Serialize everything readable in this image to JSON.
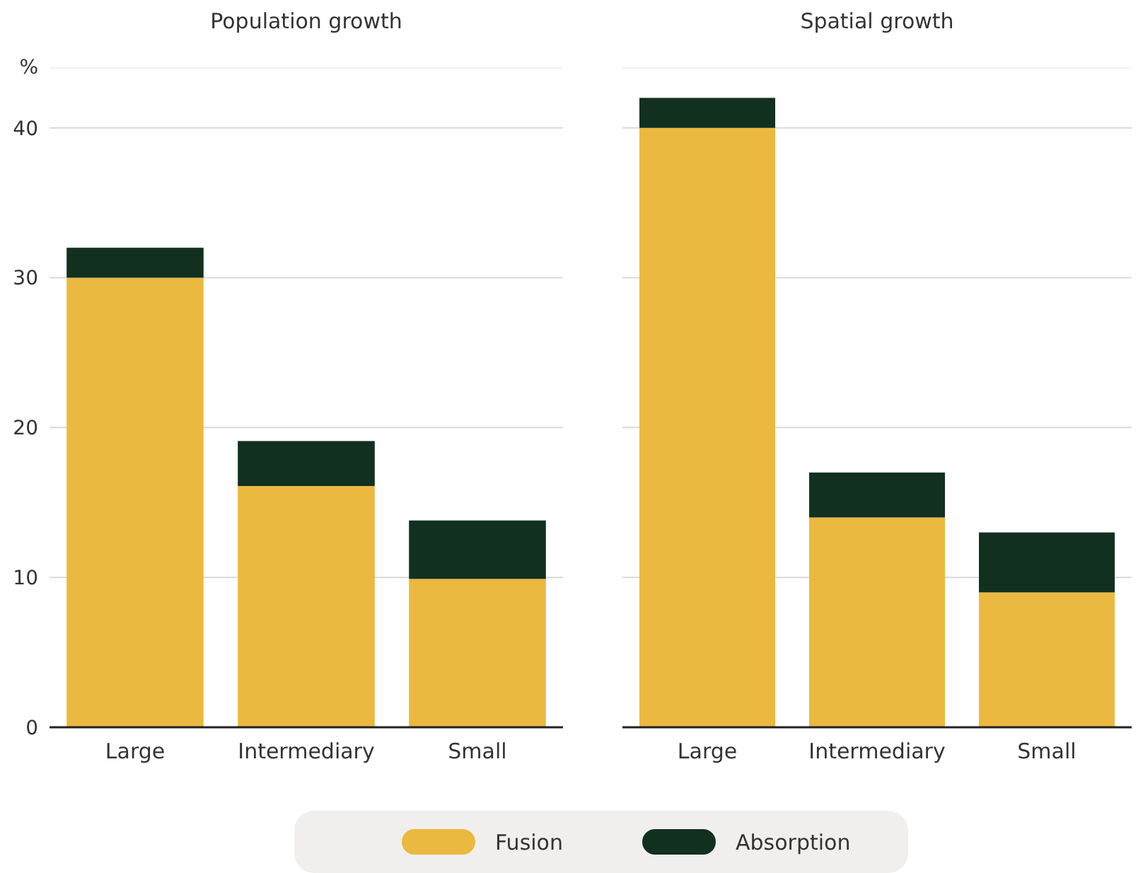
{
  "chart_data": [
    {
      "type": "bar",
      "title": "Population growth",
      "ylabel": "%",
      "categories": [
        "Large",
        "Intermediary",
        "Small"
      ],
      "stacked": true,
      "series": [
        {
          "name": "Fusion",
          "color": "#ebb93f",
          "values": [
            30,
            16.1,
            9.9
          ]
        },
        {
          "name": "Absorption",
          "color": "#11301f",
          "values": [
            2,
            3,
            3.9
          ]
        }
      ],
      "ylim": [
        0,
        44
      ],
      "yticks": [
        0,
        10,
        20,
        30,
        40
      ],
      "grid": "y",
      "legend": "bottom"
    },
    {
      "type": "bar",
      "title": "Spatial growth",
      "categories": [
        "Large",
        "Intermediary",
        "Small"
      ],
      "stacked": true,
      "series": [
        {
          "color": "#ebb93f",
          "values": [
            40,
            14,
            9
          ]
        },
        {
          "color": "#11301f",
          "values": [
            2,
            3,
            4
          ]
        }
      ],
      "ylim": [
        0,
        44
      ],
      "yticks": [
        0,
        10,
        20,
        30,
        40
      ],
      "grid": "y",
      "tick_labels": "x",
      "legend": false
    }
  ]
}
